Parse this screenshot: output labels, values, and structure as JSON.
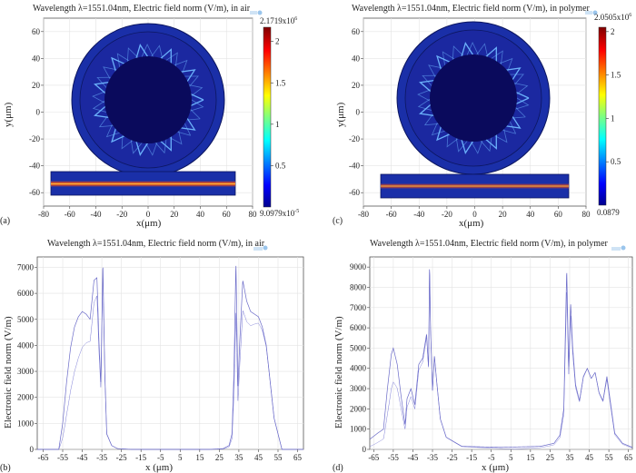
{
  "colors": {
    "field_bg": "#16198a",
    "ring_outer": "#1a2fa8",
    "mode_line": "#6fb7ff",
    "bar_lo": "#00008f",
    "bar_hi": "#8b0000",
    "line_series": "#7a7ad6",
    "waveguide_core": "#e04a1a"
  },
  "chart_data": [
    {
      "panel": "(a)",
      "type": "heatmap",
      "title": "Wavelength λ=1551.04nm, Electric field norm (V/m), in air",
      "xlabel": "x(μm)",
      "ylabel": "y(μm)",
      "xlim": [
        -80,
        80
      ],
      "ylim": [
        -70,
        70
      ],
      "xticks": [
        "-80",
        "-60",
        "-40",
        "-20",
        "0",
        "20",
        "40",
        "60",
        "80"
      ],
      "yticks": [
        "60",
        "40",
        "20",
        "0",
        "-20",
        "-40",
        "-60"
      ],
      "colorbar": {
        "max_label": "2.1719x10",
        "max_exp": "6",
        "min_label": "9.0979x10",
        "min_exp": "-5",
        "ticks": [
          "2",
          "1.5",
          "1",
          "0.5"
        ],
        "tick_values": [
          2,
          1.5,
          1,
          0.5
        ],
        "range": [
          0,
          2.1719
        ]
      }
    },
    {
      "panel": "(b)",
      "type": "line",
      "title": "Wavelength λ=1551.04nm, Electric field norm (V/m), in air",
      "xlabel": "x (μm)",
      "ylabel": "Electronic field norm (V/m)",
      "xlim": [
        -68,
        68
      ],
      "ylim": [
        0,
        7400
      ],
      "xticks": [
        "-65",
        "-55",
        "-45",
        "-35",
        "-25",
        "-15",
        "-5",
        "5",
        "15",
        "25",
        "35",
        "45",
        "55",
        "65"
      ],
      "yticks": [
        "7000",
        "6000",
        "5000",
        "4000",
        "3000",
        "2000",
        "1000",
        "0"
      ],
      "envelope": {
        "x": [
          -68,
          -57,
          -55,
          -53,
          -51,
          -49,
          -47,
          -45,
          -43,
          -41,
          -39,
          -37.5,
          -36.5,
          -35.5,
          -34.5,
          -33.5,
          -32.5,
          -30,
          -27,
          -20,
          0,
          20,
          27,
          30,
          31.5,
          32.5,
          33.5,
          34.5,
          35.5,
          37,
          39,
          41,
          43,
          45,
          47,
          49,
          51,
          53,
          55,
          57,
          68
        ],
        "y": [
          0,
          0,
          1000,
          2600,
          3900,
          4700,
          5100,
          5300,
          5200,
          5000,
          6500,
          6600,
          4200,
          2500,
          7200,
          3000,
          600,
          150,
          30,
          0,
          0,
          0,
          30,
          150,
          600,
          3000,
          7200,
          2400,
          4200,
          6500,
          5700,
          5300,
          5200,
          5100,
          4700,
          4000,
          2600,
          1200,
          600,
          0,
          0
        ]
      }
    },
    {
      "panel": "(c)",
      "type": "heatmap",
      "title": "Wavelength λ=1551.04nm, Electric field norm (V/m), in polymer",
      "xlabel": "x(μm)",
      "ylabel": "y(μm)",
      "xlim": [
        -80,
        80
      ],
      "ylim": [
        -70,
        70
      ],
      "xticks": [
        "-80",
        "-60",
        "-40",
        "-20",
        "0",
        "20",
        "40",
        "60",
        "80"
      ],
      "yticks": [
        "60",
        "40",
        "20",
        "0",
        "-20",
        "-40",
        "-60"
      ],
      "colorbar": {
        "max_label": "2.0505x10",
        "max_exp": "6",
        "min_label": "0.0879",
        "min_exp": "",
        "ticks": [
          "2",
          "1.5",
          "1",
          "0.5"
        ],
        "tick_values": [
          2,
          1.5,
          1,
          0.5
        ],
        "range": [
          0,
          2.0505
        ]
      }
    },
    {
      "panel": "(d)",
      "type": "line",
      "title": "Wavelength λ=1551.04nm, Electric field norm (V/m), in polymer",
      "xlabel": "x (μm)",
      "ylabel": "Electronic field norm (V/m)",
      "xlim": [
        -67,
        67
      ],
      "ylim": [
        0,
        9500
      ],
      "xticks": [
        "-65",
        "-55",
        "-45",
        "-35",
        "-25",
        "-15",
        "-5",
        "5",
        "15",
        "25",
        "35",
        "45",
        "55",
        "65"
      ],
      "yticks": [
        "9000",
        "8000",
        "7000",
        "6000",
        "5000",
        "4000",
        "3000",
        "2000",
        "1000",
        "0"
      ],
      "envelope": {
        "x": [
          -67,
          -63,
          -60,
          -58,
          -56,
          -55,
          -53,
          -51,
          -49,
          -48,
          -46,
          -44,
          -42,
          -40,
          -38,
          -37,
          -36.5,
          -36,
          -35,
          -34,
          -33,
          -31,
          -28,
          -20,
          0,
          20,
          27,
          30,
          32,
          33.5,
          34.5,
          35.5,
          36.5,
          38,
          40,
          42,
          44,
          46,
          48,
          50,
          52,
          54,
          56,
          58,
          62,
          67
        ],
        "y": [
          500,
          800,
          1000,
          3000,
          4700,
          5000,
          4200,
          2600,
          1200,
          2500,
          3000,
          2200,
          4200,
          4500,
          5700,
          4000,
          9200,
          6000,
          2900,
          4600,
          3500,
          1500,
          600,
          150,
          100,
          150,
          300,
          700,
          2000,
          8900,
          4000,
          7200,
          5100,
          3200,
          2400,
          3600,
          4000,
          3500,
          3800,
          2800,
          2400,
          3600,
          2200,
          800,
          300,
          100
        ]
      }
    }
  ]
}
